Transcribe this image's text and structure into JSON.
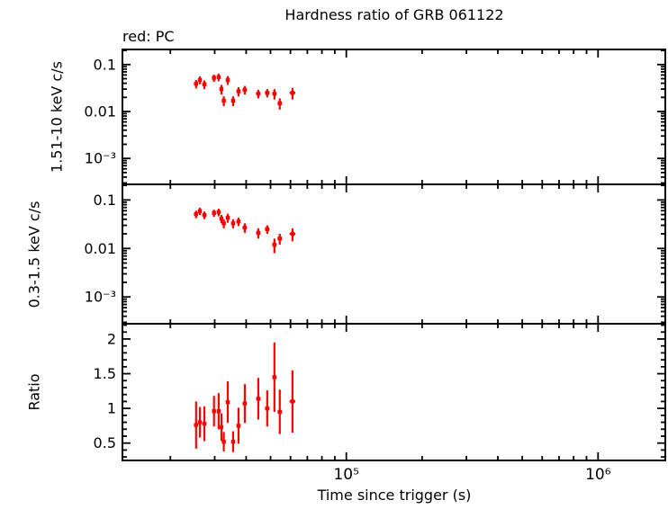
{
  "chart_data": {
    "type": "scatter",
    "title": "Hardness ratio of GRB 061122",
    "annotation": "red: PC",
    "xlabel": "Time since trigger (s)",
    "xscale": "log",
    "xlim": [
      12900,
      1850000
    ],
    "legend": "none",
    "grid": false,
    "point_color": "#ff0000",
    "frame_color": "#000000",
    "x": [
      25300,
      26200,
      27300,
      29800,
      31100,
      31900,
      32600,
      33800,
      35500,
      37300,
      39500,
      44700,
      48500,
      51800,
      54400,
      61100
    ],
    "x_err": [
      500,
      450,
      500,
      500,
      400,
      350,
      400,
      550,
      600,
      650,
      800,
      900,
      1000,
      1000,
      1100,
      1600
    ],
    "xticks": [
      {
        "value": 100000,
        "label": "10⁵"
      },
      {
        "value": 1000000,
        "label": "10⁶"
      }
    ],
    "panels": [
      {
        "name": "hard",
        "ylabel": "1.51-10 keV c/s",
        "yscale": "log",
        "ylim": [
          0.00028,
          0.21
        ],
        "yticks": [
          {
            "value": 0.1,
            "label": "0.1"
          },
          {
            "value": 0.01,
            "label": "0.01"
          },
          {
            "value": 0.001,
            "label": "10⁻³"
          }
        ],
        "y": [
          0.039,
          0.047,
          0.038,
          0.052,
          0.054,
          0.03,
          0.017,
          0.047,
          0.017,
          0.027,
          0.029,
          0.024,
          0.025,
          0.024,
          0.015,
          0.025
        ],
        "y_err": [
          0.008,
          0.009,
          0.008,
          0.009,
          0.01,
          0.007,
          0.004,
          0.01,
          0.004,
          0.006,
          0.006,
          0.005,
          0.005,
          0.006,
          0.004,
          0.007
        ]
      },
      {
        "name": "soft",
        "ylabel": "0.3-1.5 keV c/s",
        "yscale": "log",
        "ylim": [
          0.00028,
          0.21
        ],
        "yticks": [
          {
            "value": 0.1,
            "label": "0.1"
          },
          {
            "value": 0.01,
            "label": "0.01"
          },
          {
            "value": 0.001,
            "label": "10⁻³"
          }
        ],
        "y": [
          0.051,
          0.059,
          0.049,
          0.054,
          0.056,
          0.041,
          0.033,
          0.043,
          0.033,
          0.036,
          0.027,
          0.021,
          0.025,
          0.012,
          0.016,
          0.02
        ],
        "y_err": [
          0.009,
          0.01,
          0.009,
          0.009,
          0.01,
          0.008,
          0.007,
          0.009,
          0.007,
          0.007,
          0.006,
          0.005,
          0.005,
          0.004,
          0.004,
          0.006
        ]
      },
      {
        "name": "ratio",
        "ylabel": "Ratio",
        "yscale": "linear",
        "ylim": [
          0.25,
          2.22
        ],
        "yticks": [
          {
            "value": 0.5,
            "label": "0.5"
          },
          {
            "value": 1,
            "label": "1"
          },
          {
            "value": 1.5,
            "label": "1.5"
          },
          {
            "value": 2,
            "label": "2"
          }
        ],
        "y": [
          0.76,
          0.8,
          0.78,
          0.96,
          0.96,
          0.73,
          0.52,
          1.09,
          0.52,
          0.75,
          1.07,
          1.14,
          1.0,
          1.45,
          0.95,
          1.1
        ],
        "y_err": [
          0.34,
          0.22,
          0.25,
          0.22,
          0.26,
          0.2,
          0.14,
          0.3,
          0.15,
          0.26,
          0.28,
          0.3,
          0.26,
          0.5,
          0.32,
          0.45
        ]
      }
    ]
  }
}
